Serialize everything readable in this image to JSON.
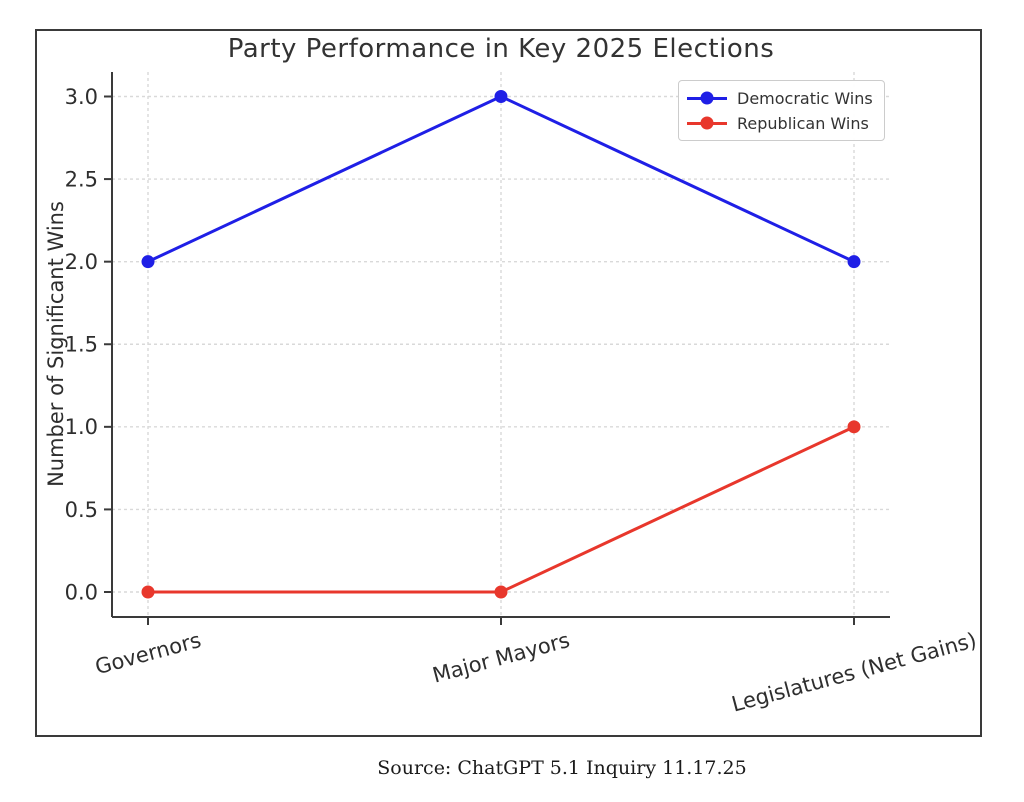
{
  "figure": {
    "title": "Party Performance in Key 2025 Elections",
    "y_axis_label": "Number of Significant Wins",
    "source_caption": "Source: ChatGPT 5.1 Inquiry 11.17.25"
  },
  "chart_data": {
    "type": "line",
    "title": "Party Performance in Key 2025 Elections",
    "categories": [
      "Governors",
      "Major Mayors",
      "Legislatures (Net Gains)"
    ],
    "series": [
      {
        "name": "Democratic Wins",
        "values": [
          2,
          3,
          2
        ],
        "color": "#1f1fe6",
        "marker": "circle"
      },
      {
        "name": "Republican Wins",
        "values": [
          0,
          0,
          1
        ],
        "color": "#e8372c",
        "marker": "circle"
      }
    ],
    "xlabel": "",
    "ylabel": "Number of Significant Wins",
    "ylim": [
      -0.15,
      3.15
    ],
    "yticks": [
      0.0,
      0.5,
      1.0,
      1.5,
      2.0,
      2.5,
      3.0
    ],
    "ytick_labels": [
      "0.0",
      "0.5",
      "1.0",
      "1.5",
      "2.0",
      "2.5",
      "3.0"
    ],
    "grid": true,
    "grid_style": "dashed",
    "legend_position": "upper right",
    "x_tick_rotation_deg": 15
  },
  "legend": {
    "items": [
      {
        "label": "Democratic Wins",
        "color": "#1f1fe6"
      },
      {
        "label": "Republican Wins",
        "color": "#e8372c"
      }
    ]
  },
  "colors": {
    "democratic": "#1f1fe6",
    "republican": "#e8372c",
    "grid": "#d9d9d9",
    "axis": "#3a3a3a",
    "tick_text": "#2e2e2e",
    "frame_border": "#3a3a3a",
    "legend_border": "#cccccc",
    "background": "#ffffff"
  }
}
